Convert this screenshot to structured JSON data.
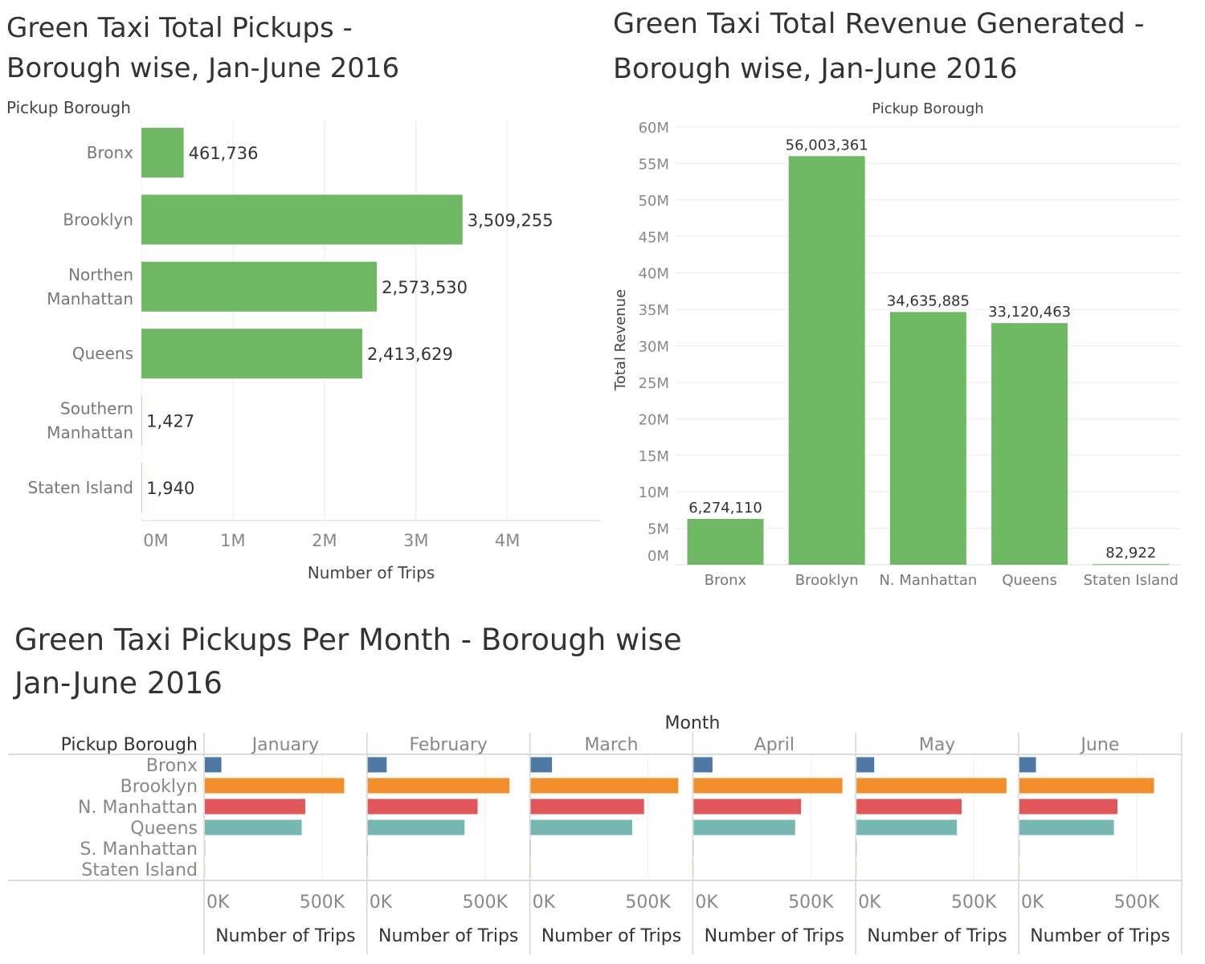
{
  "charts": {
    "pickups": {
      "title": "Green Taxi Total Pickups -\nBorough wise, Jan-June 2016",
      "chart_data": {
        "type": "bar",
        "orientation": "horizontal",
        "title": "Green Taxi Total Pickups - Borough wise, Jan-June 2016",
        "row_header": "Pickup Borough",
        "categories": [
          "Bronx",
          "Brooklyn",
          "Northen Manhattan",
          "Queens",
          "Southern Manhattan",
          "Staten Island"
        ],
        "values": [
          461736,
          3509255,
          2573530,
          2413629,
          1427,
          1940
        ],
        "value_labels": [
          "461,736",
          "3,509,255",
          "2,573,530",
          "2,413,629",
          "1,427",
          "1,940"
        ],
        "xlabel": "Number of Trips",
        "xticks": [
          "0M",
          "1M",
          "2M",
          "3M",
          "4M"
        ],
        "xlim": [
          0,
          4600000
        ],
        "color": "#6fb964",
        "grid": true
      }
    },
    "revenue": {
      "title": "Green Taxi Total Revenue Generated -\nBorough wise, Jan-June 2016",
      "chart_data": {
        "type": "bar",
        "orientation": "vertical",
        "title": "Green Taxi Total Revenue Generated - Borough wise, Jan-June 2016",
        "column_header": "Pickup Borough",
        "categories": [
          "Bronx",
          "Brooklyn",
          "N. Manhattan",
          "Queens",
          "Staten Island"
        ],
        "values": [
          6274110,
          56003361,
          34635885,
          33120463,
          82922
        ],
        "value_labels": [
          "6,274,110",
          "56,003,361",
          "34,635,885",
          "33,120,463",
          "82,922"
        ],
        "ylabel": "Total Revenue",
        "yticks": [
          "0M",
          "5M",
          "10M",
          "15M",
          "20M",
          "25M",
          "30M",
          "35M",
          "40M",
          "45M",
          "50M",
          "55M",
          "60M"
        ],
        "ylim": [
          0,
          60000000
        ],
        "color": "#6fb964",
        "grid": true
      }
    },
    "monthly": {
      "title": "Green Taxi Pickups Per Month - Borough wise\nJan-June 2016",
      "chart_data": {
        "type": "bar",
        "orientation": "horizontal",
        "title": "Green Taxi Pickups Per Month - Borough wise Jan-June 2016",
        "column_header": "Month",
        "row_header": "Pickup Borough",
        "categories": [
          "Bronx",
          "Brooklyn",
          "N. Manhattan",
          "Queens",
          "S. Manhattan",
          "Staten Island"
        ],
        "colors": [
          "#4e79a7",
          "#f28e2b",
          "#e15759",
          "#76b7b2",
          "#59a14f",
          "#edc948"
        ],
        "months": [
          {
            "name": "January",
            "values": [
              70000,
              590000,
              425000,
              410000,
              200,
              300
            ]
          },
          {
            "name": "February",
            "values": [
              80000,
              600000,
              465000,
              410000,
              200,
              300
            ]
          },
          {
            "name": "March",
            "values": [
              90000,
              625000,
              480000,
              430000,
              250,
              350
            ]
          },
          {
            "name": "April",
            "values": [
              80000,
              630000,
              455000,
              430000,
              250,
              330
            ]
          },
          {
            "name": "May",
            "values": [
              75000,
              635000,
              445000,
              425000,
              260,
              330
            ]
          },
          {
            "name": "June",
            "values": [
              70000,
              570000,
              415000,
              400000,
              260,
              330
            ]
          }
        ],
        "xlabel": "Number of Trips",
        "xticks": [
          "0K",
          "500K"
        ],
        "xlim": [
          0,
          680000
        ],
        "grid": true
      }
    }
  }
}
